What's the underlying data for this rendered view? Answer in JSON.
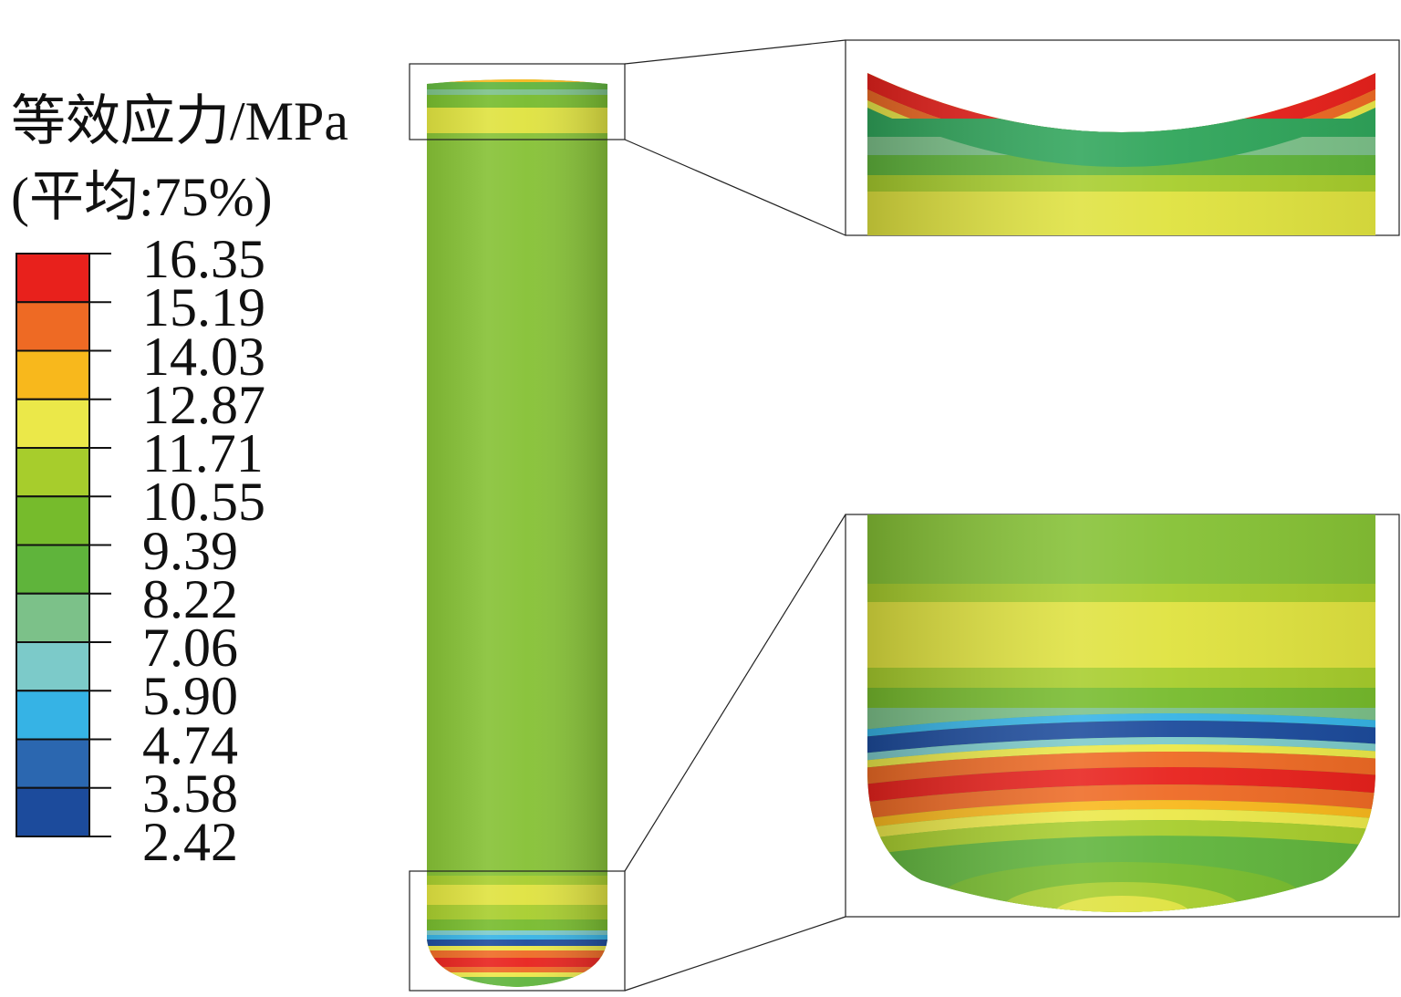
{
  "legend": {
    "title_line1": "等效应力/MPa",
    "title_line2": "(平均:75%)",
    "values": [
      "16.35",
      "15.19",
      "14.03",
      "12.87",
      "11.71",
      "10.55",
      "9.39",
      "8.22",
      "7.06",
      "5.90",
      "4.74",
      "3.58",
      "2.42"
    ],
    "colors": [
      "#e8211c",
      "#ee6a24",
      "#f8b81c",
      "#ebe849",
      "#a7cd2c",
      "#76bb2c",
      "#5fb43b",
      "#7cc189",
      "#7ccac9",
      "#36b3e5",
      "#2b67b0",
      "#1c4b9c"
    ]
  },
  "model": {
    "body_color": "#85c134",
    "band_color": "#dfe23e"
  }
}
